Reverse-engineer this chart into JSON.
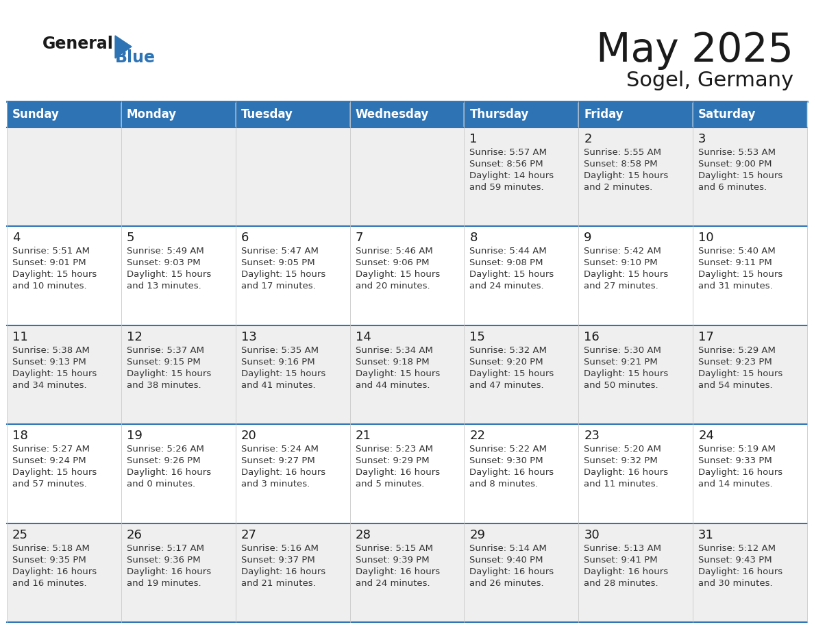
{
  "title": "May 2025",
  "subtitle": "Sogel, Germany",
  "header_bg": "#2E74B5",
  "header_text_color": "#FFFFFF",
  "weekdays": [
    "Sunday",
    "Monday",
    "Tuesday",
    "Wednesday",
    "Thursday",
    "Friday",
    "Saturday"
  ],
  "row_bg_odd": "#EFEFEF",
  "row_bg_even": "#FFFFFF",
  "border_color": "#2E74B5",
  "days": [
    {
      "day": 1,
      "col": 4,
      "row": 0,
      "sunrise": "5:57 AM",
      "sunset": "8:56 PM",
      "daylight_h": "14 hours",
      "daylight_m": "and 59 minutes."
    },
    {
      "day": 2,
      "col": 5,
      "row": 0,
      "sunrise": "5:55 AM",
      "sunset": "8:58 PM",
      "daylight_h": "15 hours",
      "daylight_m": "and 2 minutes."
    },
    {
      "day": 3,
      "col": 6,
      "row": 0,
      "sunrise": "5:53 AM",
      "sunset": "9:00 PM",
      "daylight_h": "15 hours",
      "daylight_m": "and 6 minutes."
    },
    {
      "day": 4,
      "col": 0,
      "row": 1,
      "sunrise": "5:51 AM",
      "sunset": "9:01 PM",
      "daylight_h": "15 hours",
      "daylight_m": "and 10 minutes."
    },
    {
      "day": 5,
      "col": 1,
      "row": 1,
      "sunrise": "5:49 AM",
      "sunset": "9:03 PM",
      "daylight_h": "15 hours",
      "daylight_m": "and 13 minutes."
    },
    {
      "day": 6,
      "col": 2,
      "row": 1,
      "sunrise": "5:47 AM",
      "sunset": "9:05 PM",
      "daylight_h": "15 hours",
      "daylight_m": "and 17 minutes."
    },
    {
      "day": 7,
      "col": 3,
      "row": 1,
      "sunrise": "5:46 AM",
      "sunset": "9:06 PM",
      "daylight_h": "15 hours",
      "daylight_m": "and 20 minutes."
    },
    {
      "day": 8,
      "col": 4,
      "row": 1,
      "sunrise": "5:44 AM",
      "sunset": "9:08 PM",
      "daylight_h": "15 hours",
      "daylight_m": "and 24 minutes."
    },
    {
      "day": 9,
      "col": 5,
      "row": 1,
      "sunrise": "5:42 AM",
      "sunset": "9:10 PM",
      "daylight_h": "15 hours",
      "daylight_m": "and 27 minutes."
    },
    {
      "day": 10,
      "col": 6,
      "row": 1,
      "sunrise": "5:40 AM",
      "sunset": "9:11 PM",
      "daylight_h": "15 hours",
      "daylight_m": "and 31 minutes."
    },
    {
      "day": 11,
      "col": 0,
      "row": 2,
      "sunrise": "5:38 AM",
      "sunset": "9:13 PM",
      "daylight_h": "15 hours",
      "daylight_m": "and 34 minutes."
    },
    {
      "day": 12,
      "col": 1,
      "row": 2,
      "sunrise": "5:37 AM",
      "sunset": "9:15 PM",
      "daylight_h": "15 hours",
      "daylight_m": "and 38 minutes."
    },
    {
      "day": 13,
      "col": 2,
      "row": 2,
      "sunrise": "5:35 AM",
      "sunset": "9:16 PM",
      "daylight_h": "15 hours",
      "daylight_m": "and 41 minutes."
    },
    {
      "day": 14,
      "col": 3,
      "row": 2,
      "sunrise": "5:34 AM",
      "sunset": "9:18 PM",
      "daylight_h": "15 hours",
      "daylight_m": "and 44 minutes."
    },
    {
      "day": 15,
      "col": 4,
      "row": 2,
      "sunrise": "5:32 AM",
      "sunset": "9:20 PM",
      "daylight_h": "15 hours",
      "daylight_m": "and 47 minutes."
    },
    {
      "day": 16,
      "col": 5,
      "row": 2,
      "sunrise": "5:30 AM",
      "sunset": "9:21 PM",
      "daylight_h": "15 hours",
      "daylight_m": "and 50 minutes."
    },
    {
      "day": 17,
      "col": 6,
      "row": 2,
      "sunrise": "5:29 AM",
      "sunset": "9:23 PM",
      "daylight_h": "15 hours",
      "daylight_m": "and 54 minutes."
    },
    {
      "day": 18,
      "col": 0,
      "row": 3,
      "sunrise": "5:27 AM",
      "sunset": "9:24 PM",
      "daylight_h": "15 hours",
      "daylight_m": "and 57 minutes."
    },
    {
      "day": 19,
      "col": 1,
      "row": 3,
      "sunrise": "5:26 AM",
      "sunset": "9:26 PM",
      "daylight_h": "16 hours",
      "daylight_m": "and 0 minutes."
    },
    {
      "day": 20,
      "col": 2,
      "row": 3,
      "sunrise": "5:24 AM",
      "sunset": "9:27 PM",
      "daylight_h": "16 hours",
      "daylight_m": "and 3 minutes."
    },
    {
      "day": 21,
      "col": 3,
      "row": 3,
      "sunrise": "5:23 AM",
      "sunset": "9:29 PM",
      "daylight_h": "16 hours",
      "daylight_m": "and 5 minutes."
    },
    {
      "day": 22,
      "col": 4,
      "row": 3,
      "sunrise": "5:22 AM",
      "sunset": "9:30 PM",
      "daylight_h": "16 hours",
      "daylight_m": "and 8 minutes."
    },
    {
      "day": 23,
      "col": 5,
      "row": 3,
      "sunrise": "5:20 AM",
      "sunset": "9:32 PM",
      "daylight_h": "16 hours",
      "daylight_m": "and 11 minutes."
    },
    {
      "day": 24,
      "col": 6,
      "row": 3,
      "sunrise": "5:19 AM",
      "sunset": "9:33 PM",
      "daylight_h": "16 hours",
      "daylight_m": "and 14 minutes."
    },
    {
      "day": 25,
      "col": 0,
      "row": 4,
      "sunrise": "5:18 AM",
      "sunset": "9:35 PM",
      "daylight_h": "16 hours",
      "daylight_m": "and 16 minutes."
    },
    {
      "day": 26,
      "col": 1,
      "row": 4,
      "sunrise": "5:17 AM",
      "sunset": "9:36 PM",
      "daylight_h": "16 hours",
      "daylight_m": "and 19 minutes."
    },
    {
      "day": 27,
      "col": 2,
      "row": 4,
      "sunrise": "5:16 AM",
      "sunset": "9:37 PM",
      "daylight_h": "16 hours",
      "daylight_m": "and 21 minutes."
    },
    {
      "day": 28,
      "col": 3,
      "row": 4,
      "sunrise": "5:15 AM",
      "sunset": "9:39 PM",
      "daylight_h": "16 hours",
      "daylight_m": "and 24 minutes."
    },
    {
      "day": 29,
      "col": 4,
      "row": 4,
      "sunrise": "5:14 AM",
      "sunset": "9:40 PM",
      "daylight_h": "16 hours",
      "daylight_m": "and 26 minutes."
    },
    {
      "day": 30,
      "col": 5,
      "row": 4,
      "sunrise": "5:13 AM",
      "sunset": "9:41 PM",
      "daylight_h": "16 hours",
      "daylight_m": "and 28 minutes."
    },
    {
      "day": 31,
      "col": 6,
      "row": 4,
      "sunrise": "5:12 AM",
      "sunset": "9:43 PM",
      "daylight_h": "16 hours",
      "daylight_m": "and 30 minutes."
    }
  ]
}
